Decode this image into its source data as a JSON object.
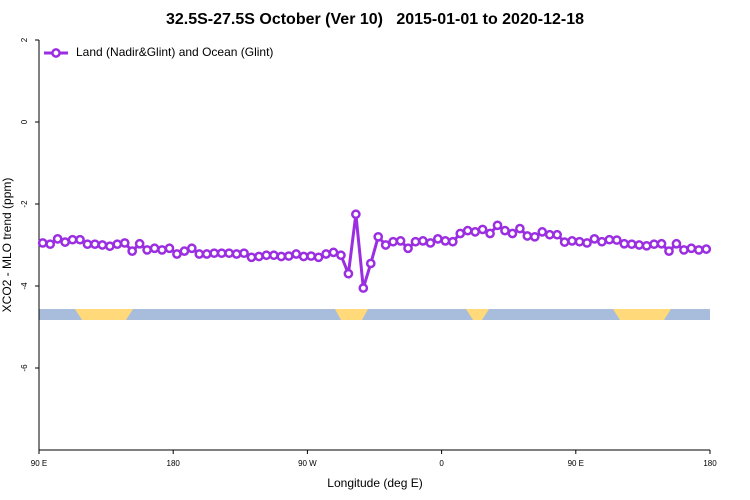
{
  "chart_data": {
    "type": "line",
    "title": "32.5S-27.5S October (Ver 10)   2015-01-01 to 2020-12-18",
    "x_label": "Longitude (deg E)",
    "y_label": "XCO2 - MLO trend (ppm)",
    "xlim": [
      90,
      540
    ],
    "xticks": [
      {
        "value": 90,
        "label": "90 E"
      },
      180,
      {
        "value": 270,
        "label": "90 W"
      },
      {
        "value": 360,
        "label": "0"
      },
      {
        "value": 450,
        "label": "90 E"
      },
      {
        "value": 540,
        "label": "180"
      }
    ],
    "ylim": [
      -8,
      2
    ],
    "yticks": [
      -6,
      -4,
      -2,
      0,
      2
    ],
    "legend": "upper left",
    "x": [
      92.5,
      97.5,
      102.5,
      107.5,
      112.5,
      117.5,
      122.5,
      127.5,
      132.5,
      137.5,
      142.5,
      147.5,
      152.5,
      157.5,
      162.5,
      167.5,
      172.5,
      177.5,
      182.5,
      187.5,
      192.5,
      197.5,
      202.5,
      207.5,
      212.5,
      217.5,
      222.5,
      227.5,
      232.5,
      237.5,
      242.5,
      247.5,
      252.5,
      257.5,
      262.5,
      267.5,
      272.5,
      277.5,
      282.5,
      287.5,
      292.5,
      297.5,
      302.5,
      307.5,
      312.5,
      317.5,
      322.5,
      327.5,
      332.5,
      337.5,
      342.5,
      347.5,
      352.5,
      357.5,
      362.5,
      367.5,
      372.5,
      377.5,
      382.5,
      387.5,
      392.5,
      397.5,
      402.5,
      407.5,
      412.5,
      417.5,
      422.5,
      427.5,
      432.5,
      437.5,
      442.5,
      447.5,
      452.5,
      457.5,
      462.5,
      467.5,
      472.5,
      477.5,
      482.5,
      487.5,
      492.5,
      497.5,
      502.5,
      507.5,
      512.5,
      517.5,
      522.5,
      527.5,
      532.5,
      537.5
    ],
    "series": [
      {
        "name": "Land (Nadir&Glint) and Ocean (Glint)",
        "color": "#9b2ee0",
        "values": [
          -2.95,
          -2.98,
          -2.85,
          -2.93,
          -2.87,
          -2.87,
          -2.98,
          -2.98,
          -3.0,
          -3.03,
          -2.98,
          -2.95,
          -3.15,
          -2.97,
          -3.12,
          -3.08,
          -3.12,
          -3.08,
          -3.22,
          -3.15,
          -3.08,
          -3.22,
          -3.22,
          -3.2,
          -3.2,
          -3.2,
          -3.22,
          -3.2,
          -3.3,
          -3.28,
          -3.25,
          -3.25,
          -3.28,
          -3.27,
          -3.22,
          -3.28,
          -3.27,
          -3.3,
          -3.22,
          -3.18,
          -3.25,
          -3.7,
          -2.25,
          -4.05,
          -3.45,
          -2.8,
          -3.0,
          -2.92,
          -2.9,
          -3.08,
          -2.92,
          -2.9,
          -2.95,
          -2.85,
          -2.9,
          -2.92,
          -2.72,
          -2.65,
          -2.68,
          -2.62,
          -2.72,
          -2.52,
          -2.65,
          -2.72,
          -2.6,
          -2.78,
          -2.8,
          -2.68,
          -2.75,
          -2.75,
          -2.93,
          -2.9,
          -2.92,
          -2.95,
          -2.85,
          -2.92,
          -2.87,
          -2.88,
          -2.97,
          -2.98,
          -3.0,
          -3.02,
          -2.98,
          -2.97,
          -3.15,
          -2.97,
          -3.12,
          -3.08,
          -3.12,
          -3.1
        ]
      }
    ]
  }
}
